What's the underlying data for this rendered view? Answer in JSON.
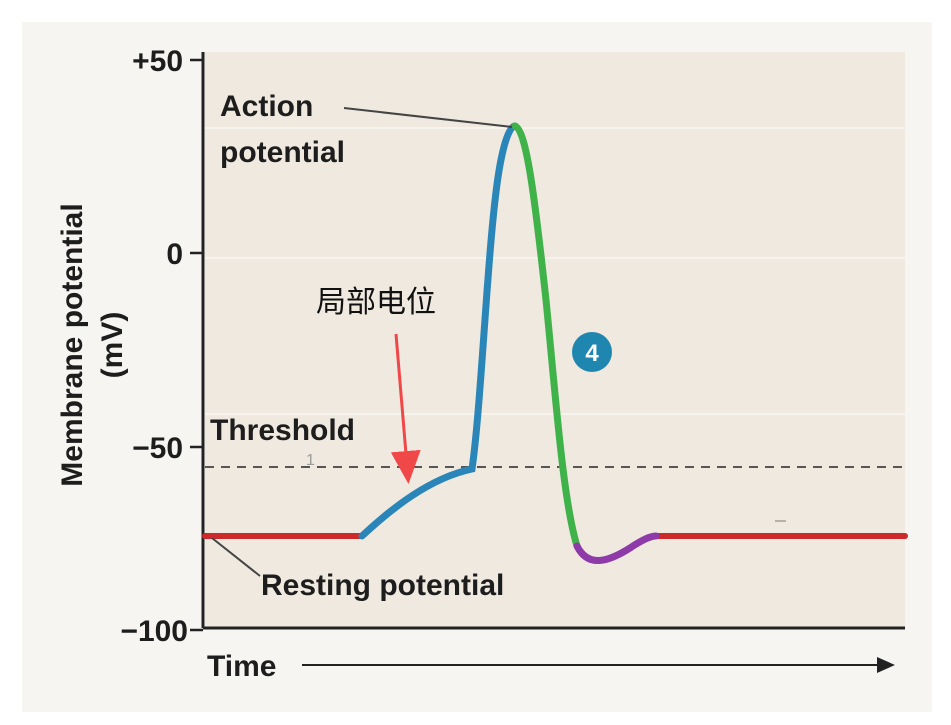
{
  "chart_data": {
    "type": "line",
    "xlabel": "Time",
    "ylabel": "Membrane potential",
    "ylabel_unit": "(mV)",
    "y_ticks": [
      "+50",
      "0",
      "−50",
      "−100"
    ],
    "y_tick_values": [
      50,
      0,
      -50,
      -100
    ],
    "ylim": [
      -100,
      50
    ],
    "threshold_mv": -55,
    "resting_mv": -75,
    "peak_mv": 32,
    "undershoot_mv": -82,
    "series": [
      {
        "segment": "resting",
        "color": "#cc2a2a"
      },
      {
        "segment": "depolarization",
        "color": "#2a86b8"
      },
      {
        "segment": "repolarization",
        "color": "#3fb24a"
      },
      {
        "segment": "hyperpolarization",
        "color": "#8e3aa8"
      }
    ]
  },
  "labels": {
    "action_line1": "Action",
    "action_line2": "potential",
    "threshold": "Threshold",
    "resting": "Resting potential",
    "local_potential": "局部电位",
    "step_badge": "4",
    "small_mark": "1"
  },
  "colors": {
    "plot_bg": "#efe9e0",
    "outer_bg": "#f6f5f1",
    "axis": "#222222",
    "threshold_line": "#555555",
    "badge": "#1f86b0",
    "annotation_arrow": "#f04848"
  }
}
